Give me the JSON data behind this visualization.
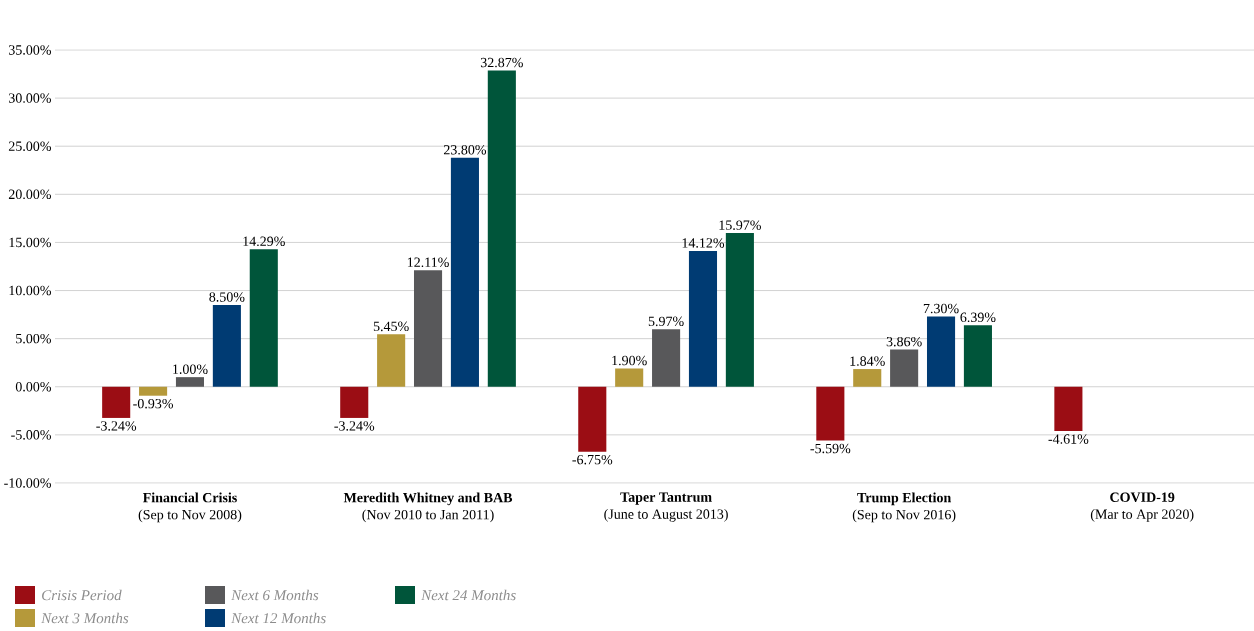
{
  "chart_data": {
    "type": "bar",
    "categories": [
      "**Financial Crisis**\n(Sep to Nov 2008)",
      "**Meredith Whitney and BAB**\n(Nov 2010 to Jan 2011)",
      "**Taper Tantrum**\n(June to August 2013)",
      "**Trump Election**\n(Sep to Nov 2016)",
      "**COVID-19**\n(Mar to Apr 2020)"
    ],
    "series": [
      {
        "name": "Crisis Period",
        "color": "#9b0d14",
        "values": [
          -3.24,
          -3.24,
          -6.75,
          -5.59,
          -4.61
        ],
        "value_labels": [
          "-3.24%",
          "-3.24%",
          "-6.75%",
          "-5.59%",
          "-4.61%"
        ]
      },
      {
        "name": "Next 3 Months",
        "color": "#b5993a",
        "values": [
          -0.93,
          5.45,
          1.9,
          1.84,
          null
        ],
        "value_labels": [
          "-0.93%",
          "5.45%",
          "1.90%",
          "1.84%",
          null
        ]
      },
      {
        "name": "Next 6 Months",
        "color": "#58585a",
        "values": [
          1.0,
          12.11,
          5.97,
          3.86,
          null
        ],
        "value_labels": [
          "1.00%",
          "12.11%",
          "5.97%",
          "3.86%",
          null
        ]
      },
      {
        "name": "Next 12 Months",
        "color": "#003b73",
        "values": [
          8.5,
          23.8,
          14.12,
          7.3,
          null
        ],
        "value_labels": [
          "8.50%",
          "23.80%",
          "14.12%",
          "7.30%",
          null
        ]
      },
      {
        "name": "Next 24 Months",
        "color": "#00553a",
        "values": [
          14.29,
          32.87,
          15.97,
          6.39,
          null
        ],
        "value_labels": [
          "14.29%",
          "32.87%",
          "15.97%",
          "6.39%",
          null
        ]
      }
    ],
    "ylim": [
      -10,
      35
    ],
    "yticks": [
      {
        "value": -10,
        "label": "-10.00%"
      },
      {
        "value": -5,
        "label": "-5.00%"
      },
      {
        "value": 0,
        "label": "0.00%"
      },
      {
        "value": 5,
        "label": "5.00%"
      },
      {
        "value": 10,
        "label": "10.00%"
      },
      {
        "value": 15,
        "label": "15.00%"
      },
      {
        "value": 20,
        "label": "20.00%"
      },
      {
        "value": 25,
        "label": "25.00%"
      },
      {
        "value": 30,
        "label": "30.00%"
      },
      {
        "value": 35,
        "label": "35.00%"
      }
    ],
    "grid": "y",
    "legend": "bottom left"
  }
}
